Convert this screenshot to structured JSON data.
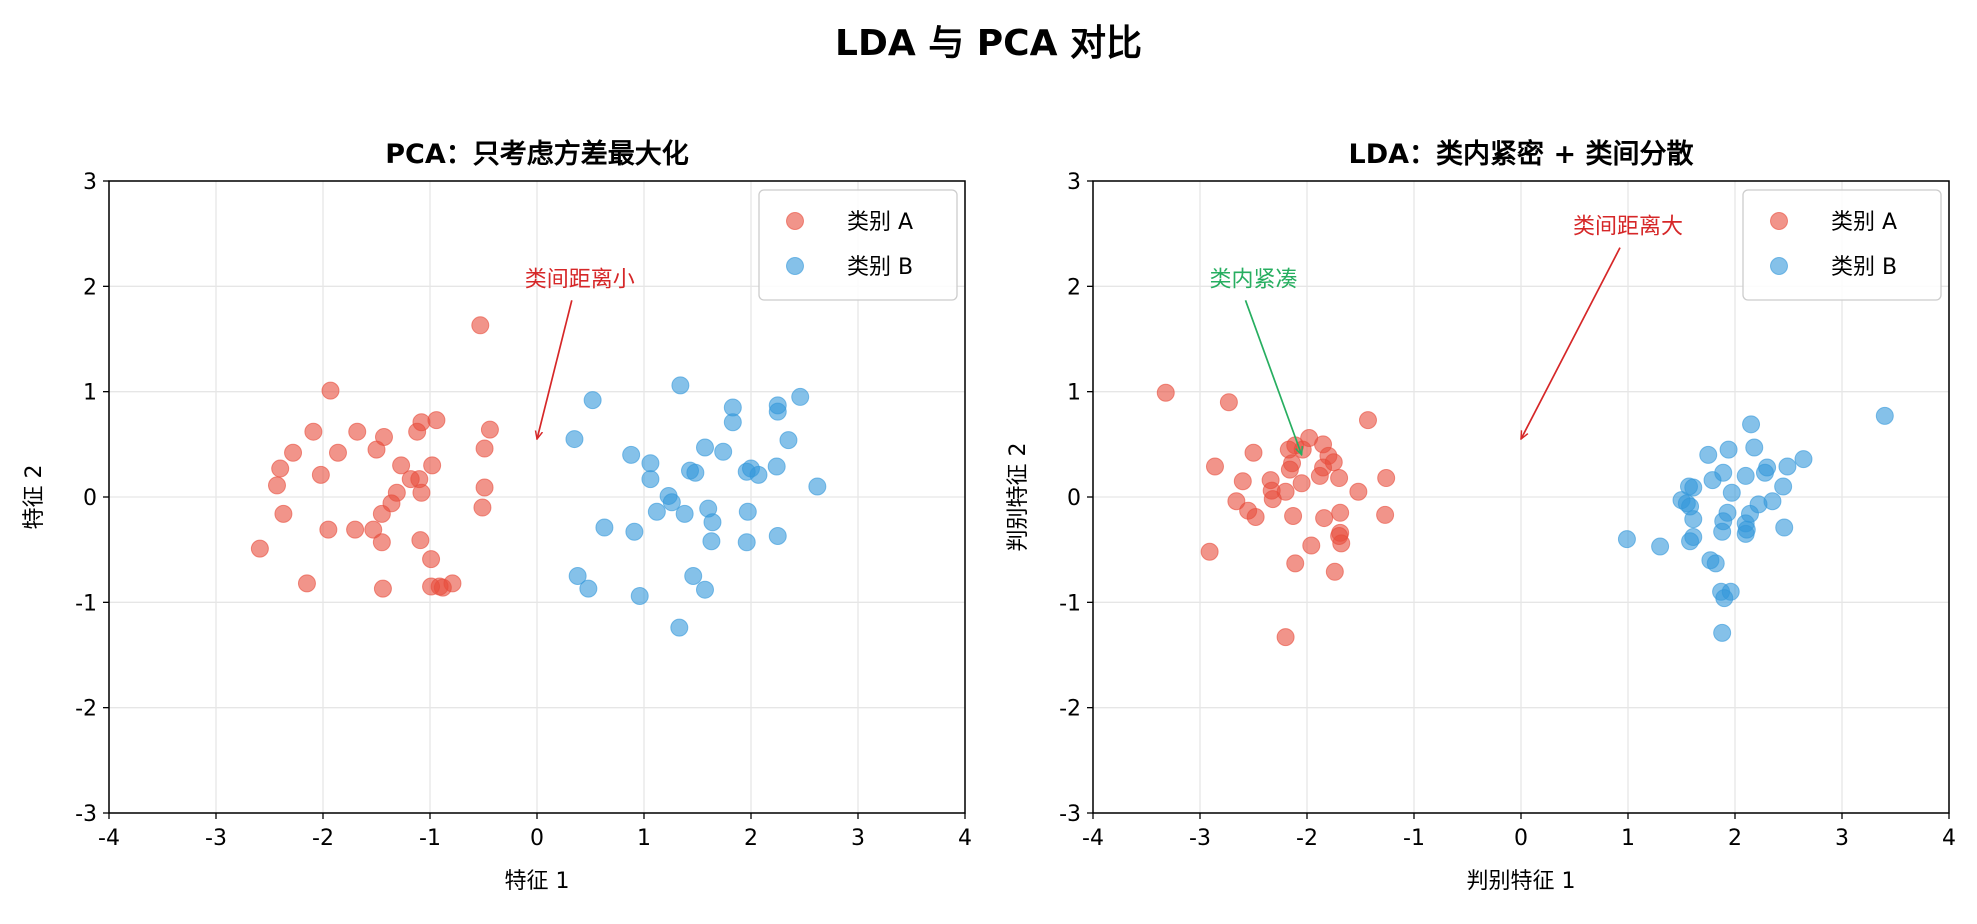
{
  "title": "LDA 与 PCA 对比",
  "colors": {
    "class_a": "#e74c3c",
    "class_b": "#3498db",
    "within": "#27ae60",
    "between": "#d62728"
  },
  "chart_data": [
    {
      "type": "scatter",
      "title": "PCA：只考虑方差最大化",
      "xlabel": "特征 1",
      "ylabel": "特征 2",
      "xlim": [
        -4,
        4
      ],
      "ylim": [
        -3,
        3
      ],
      "xticks": [
        -4,
        -3,
        -2,
        -1,
        0,
        1,
        2,
        3,
        4
      ],
      "yticks": [
        -3,
        -2,
        -1,
        0,
        1,
        2,
        3
      ],
      "grid": true,
      "legend_position": "top-right",
      "series": [
        {
          "name": "类别 A",
          "color": "#e74c3c",
          "points": [
            [
              -0.53,
              1.63
            ],
            [
              -1.93,
              1.01
            ],
            [
              -2.09,
              0.62
            ],
            [
              -1.68,
              0.62
            ],
            [
              -1.08,
              0.71
            ],
            [
              -0.94,
              0.73
            ],
            [
              -0.44,
              0.64
            ],
            [
              -1.12,
              0.62
            ],
            [
              -1.43,
              0.57
            ],
            [
              -2.28,
              0.42
            ],
            [
              -1.86,
              0.42
            ],
            [
              -1.5,
              0.45
            ],
            [
              -0.49,
              0.46
            ],
            [
              -2.4,
              0.27
            ],
            [
              -2.02,
              0.21
            ],
            [
              -1.27,
              0.3
            ],
            [
              -0.98,
              0.3
            ],
            [
              -2.43,
              0.11
            ],
            [
              -1.18,
              0.17
            ],
            [
              -1.1,
              0.17
            ],
            [
              -1.31,
              0.04
            ],
            [
              -1.08,
              0.04
            ],
            [
              -0.49,
              0.09
            ],
            [
              -1.36,
              -0.06
            ],
            [
              -2.37,
              -0.16
            ],
            [
              -1.45,
              -0.16
            ],
            [
              -0.51,
              -0.1
            ],
            [
              -1.95,
              -0.31
            ],
            [
              -1.7,
              -0.31
            ],
            [
              -1.53,
              -0.31
            ],
            [
              -2.59,
              -0.49
            ],
            [
              -1.45,
              -0.43
            ],
            [
              -1.09,
              -0.41
            ],
            [
              -0.99,
              -0.59
            ],
            [
              -2.15,
              -0.82
            ],
            [
              -1.44,
              -0.87
            ],
            [
              -0.99,
              -0.85
            ],
            [
              -0.88,
              -0.86
            ],
            [
              -0.91,
              -0.85
            ],
            [
              -0.79,
              -0.82
            ]
          ]
        },
        {
          "name": "类别 B",
          "color": "#3498db",
          "points": [
            [
              0.52,
              0.92
            ],
            [
              1.34,
              1.06
            ],
            [
              1.83,
              0.85
            ],
            [
              2.25,
              0.87
            ],
            [
              2.46,
              0.95
            ],
            [
              2.25,
              0.81
            ],
            [
              1.83,
              0.71
            ],
            [
              0.35,
              0.55
            ],
            [
              2.35,
              0.54
            ],
            [
              1.57,
              0.47
            ],
            [
              1.74,
              0.43
            ],
            [
              0.88,
              0.4
            ],
            [
              1.06,
              0.32
            ],
            [
              1.43,
              0.25
            ],
            [
              1.96,
              0.24
            ],
            [
              2.0,
              0.27
            ],
            [
              2.24,
              0.29
            ],
            [
              2.07,
              0.21
            ],
            [
              1.48,
              0.23
            ],
            [
              1.06,
              0.17
            ],
            [
              2.62,
              0.1
            ],
            [
              1.23,
              0.01
            ],
            [
              1.26,
              -0.05
            ],
            [
              1.12,
              -0.14
            ],
            [
              1.38,
              -0.16
            ],
            [
              1.6,
              -0.11
            ],
            [
              1.97,
              -0.14
            ],
            [
              0.63,
              -0.29
            ],
            [
              0.91,
              -0.33
            ],
            [
              1.64,
              -0.24
            ],
            [
              2.25,
              -0.37
            ],
            [
              1.63,
              -0.42
            ],
            [
              1.96,
              -0.43
            ],
            [
              0.38,
              -0.75
            ],
            [
              1.46,
              -0.75
            ],
            [
              0.48,
              -0.87
            ],
            [
              1.57,
              -0.88
            ],
            [
              0.96,
              -0.94
            ],
            [
              1.33,
              -1.24
            ]
          ]
        }
      ],
      "annotations": [
        {
          "text": "类间距离小",
          "text_at": [
            0.4,
            2.0
          ],
          "arrow_to": [
            0.0,
            0.55
          ],
          "color": "#d62728"
        }
      ]
    },
    {
      "type": "scatter",
      "title": "LDA：类内紧密 + 类间分散",
      "xlabel": "判别特征 1",
      "ylabel": "判别特征 2",
      "xlim": [
        -4,
        4
      ],
      "ylim": [
        -3,
        3
      ],
      "xticks": [
        -4,
        -3,
        -2,
        -1,
        0,
        1,
        2,
        3,
        4
      ],
      "yticks": [
        -3,
        -2,
        -1,
        0,
        1,
        2,
        3
      ],
      "grid": true,
      "legend_position": "top-right",
      "series": [
        {
          "name": "类别 A",
          "color": "#e74c3c",
          "points": [
            [
              -3.32,
              0.99
            ],
            [
              -2.73,
              0.9
            ],
            [
              -1.98,
              0.56
            ],
            [
              -1.43,
              0.73
            ],
            [
              -2.11,
              0.49
            ],
            [
              -1.85,
              0.5
            ],
            [
              -2.04,
              0.45
            ],
            [
              -2.17,
              0.45
            ],
            [
              -2.5,
              0.42
            ],
            [
              -1.8,
              0.39
            ],
            [
              -1.75,
              0.33
            ],
            [
              -2.14,
              0.32
            ],
            [
              -1.85,
              0.28
            ],
            [
              -2.86,
              0.29
            ],
            [
              -2.16,
              0.26
            ],
            [
              -2.34,
              0.16
            ],
            [
              -2.6,
              0.15
            ],
            [
              -1.88,
              0.2
            ],
            [
              -1.7,
              0.18
            ],
            [
              -1.26,
              0.18
            ],
            [
              -2.05,
              0.13
            ],
            [
              -2.33,
              0.06
            ],
            [
              -2.2,
              0.05
            ],
            [
              -1.52,
              0.05
            ],
            [
              -2.66,
              -0.04
            ],
            [
              -2.32,
              -0.02
            ],
            [
              -2.55,
              -0.13
            ],
            [
              -2.48,
              -0.19
            ],
            [
              -2.13,
              -0.18
            ],
            [
              -1.69,
              -0.15
            ],
            [
              -1.84,
              -0.2
            ],
            [
              -1.27,
              -0.17
            ],
            [
              -1.69,
              -0.34
            ],
            [
              -1.7,
              -0.37
            ],
            [
              -1.68,
              -0.44
            ],
            [
              -1.96,
              -0.46
            ],
            [
              -2.91,
              -0.52
            ],
            [
              -2.11,
              -0.63
            ],
            [
              -1.74,
              -0.71
            ],
            [
              -2.2,
              -1.33
            ]
          ]
        },
        {
          "name": "类别 B",
          "color": "#3498db",
          "points": [
            [
              3.4,
              0.77
            ],
            [
              2.15,
              0.69
            ],
            [
              2.18,
              0.47
            ],
            [
              1.94,
              0.45
            ],
            [
              1.75,
              0.4
            ],
            [
              2.64,
              0.36
            ],
            [
              2.49,
              0.29
            ],
            [
              2.3,
              0.28
            ],
            [
              1.89,
              0.23
            ],
            [
              2.28,
              0.23
            ],
            [
              2.1,
              0.2
            ],
            [
              1.79,
              0.16
            ],
            [
              1.57,
              0.1
            ],
            [
              1.61,
              0.09
            ],
            [
              2.45,
              0.1
            ],
            [
              1.97,
              0.04
            ],
            [
              1.5,
              -0.03
            ],
            [
              2.35,
              -0.04
            ],
            [
              1.58,
              -0.09
            ],
            [
              1.55,
              -0.06
            ],
            [
              2.22,
              -0.07
            ],
            [
              1.93,
              -0.15
            ],
            [
              2.14,
              -0.16
            ],
            [
              1.61,
              -0.21
            ],
            [
              1.89,
              -0.23
            ],
            [
              2.1,
              -0.25
            ],
            [
              2.46,
              -0.29
            ],
            [
              2.11,
              -0.31
            ],
            [
              1.88,
              -0.33
            ],
            [
              2.1,
              -0.35
            ],
            [
              0.99,
              -0.4
            ],
            [
              1.58,
              -0.42
            ],
            [
              1.61,
              -0.38
            ],
            [
              1.3,
              -0.47
            ],
            [
              1.77,
              -0.6
            ],
            [
              1.82,
              -0.63
            ],
            [
              1.87,
              -0.9
            ],
            [
              1.96,
              -0.9
            ],
            [
              1.9,
              -0.96
            ],
            [
              1.88,
              -1.29
            ]
          ]
        }
      ],
      "annotations": [
        {
          "text": "类内紧凑",
          "text_at": [
            -2.5,
            2.0
          ],
          "arrow_to": [
            -2.05,
            0.4
          ],
          "color": "#27ae60"
        },
        {
          "text": "类间距离大",
          "text_at": [
            1.0,
            2.5
          ],
          "arrow_to": [
            0.0,
            0.55
          ],
          "color": "#d62728"
        }
      ]
    }
  ]
}
